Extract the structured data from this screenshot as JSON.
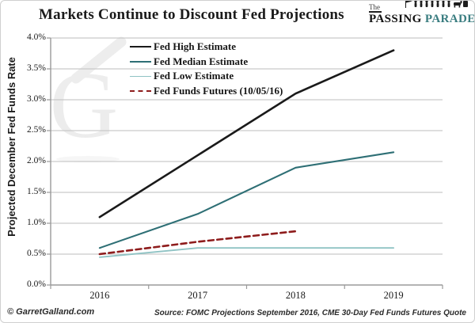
{
  "header": {
    "title": "Markets Continue to Discount Fed Projections",
    "logo": {
      "the": "The",
      "word1": "PASSING",
      "word2": "PARADE",
      "accent_color": "#3a7d80",
      "emblem": "parade-figures-icon"
    }
  },
  "footer": {
    "copyright": "© GarretGalland.com",
    "source": "Source: FOMC Projections September 2016,  CME 30-Day Fed Funds Futures Quote"
  },
  "chart_data": {
    "type": "line",
    "title": "Markets Continue to Discount Fed Projections",
    "ylabel": "Projected December Fed Funds Rate",
    "xlabel": "",
    "categories": [
      "2016",
      "2017",
      "2018",
      "2019"
    ],
    "ylim": [
      0,
      4.0
    ],
    "ytick_step": 0.5,
    "ytick_labels": [
      "0.0%",
      "0.5%",
      "1.0%",
      "1.5%",
      "2.0%",
      "2.5%",
      "3.0%",
      "3.5%",
      "4.0%"
    ],
    "grid": true,
    "legend_position": "upper-left-inside",
    "watermark": "G",
    "series": [
      {
        "name": "Fed High Estimate",
        "values": [
          1.1,
          2.1,
          3.1,
          3.8
        ],
        "color": "#1a1a1a",
        "style": "solid",
        "width": 2.6
      },
      {
        "name": "Fed Median Estimate",
        "values": [
          0.6,
          1.15,
          1.9,
          2.15
        ],
        "color": "#2e6f75",
        "style": "solid",
        "width": 2.1
      },
      {
        "name": "Fed Low Estimate",
        "values": [
          0.45,
          0.6,
          0.6,
          0.6
        ],
        "color": "#8fc3c4",
        "style": "solid",
        "width": 1.8
      },
      {
        "name": "Fed Funds Futures (10/05/16)",
        "values": [
          0.5,
          0.7,
          0.87,
          null
        ],
        "color": "#8e1c1c",
        "style": "dashed",
        "width": 2.6
      }
    ],
    "colors": {
      "gridline": "#c9c9c9",
      "axis": "#9a9a9a",
      "watermark": "#dedede"
    }
  }
}
